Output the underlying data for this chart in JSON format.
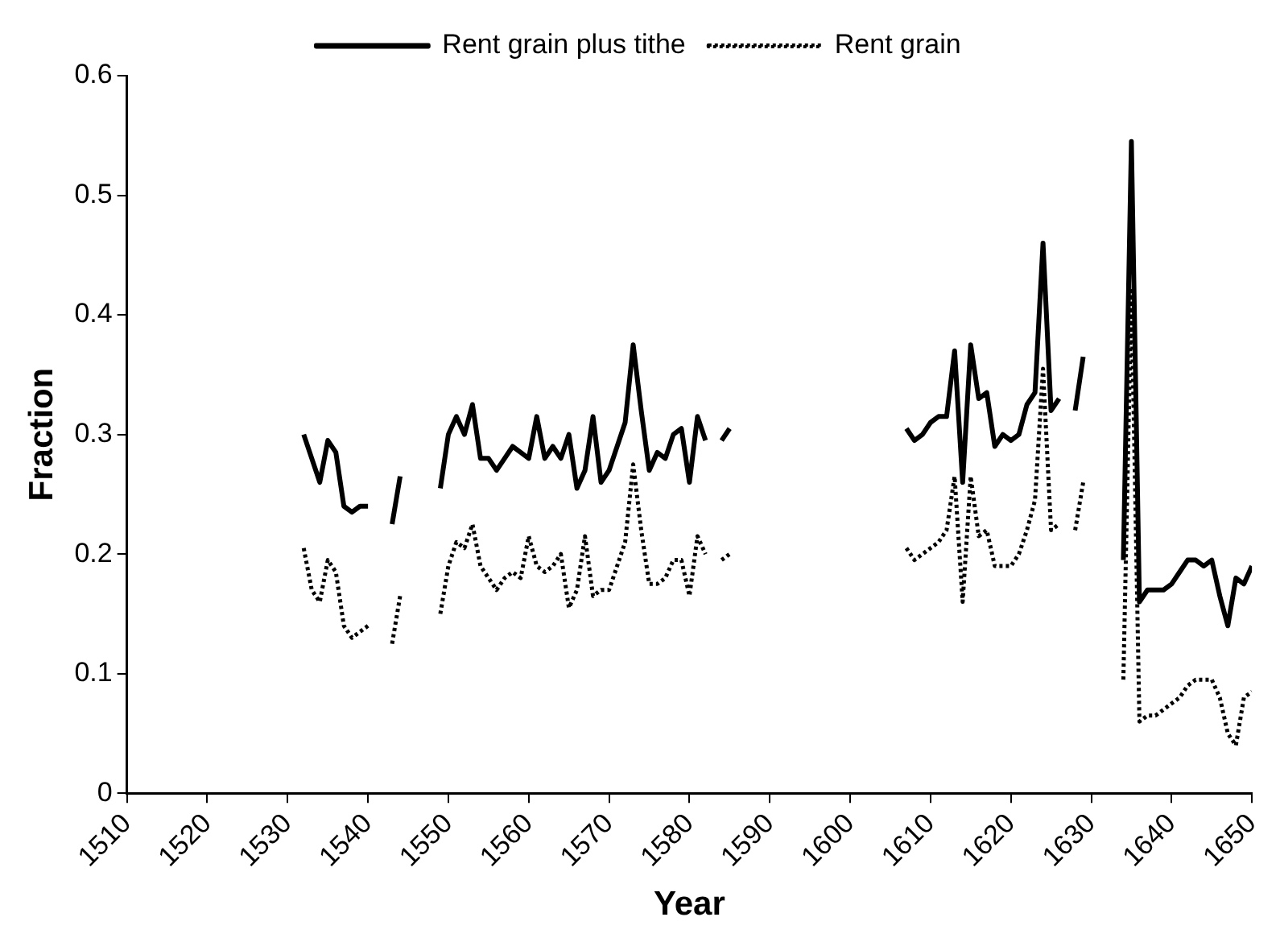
{
  "chart_data": {
    "type": "line",
    "xlabel": "Year",
    "ylabel": "Fraction",
    "x": [
      1532,
      1533,
      1534,
      1535,
      1536,
      1537,
      1538,
      1539,
      1540,
      1541,
      1542,
      1543,
      1544,
      1545,
      1546,
      1547,
      1548,
      1549,
      1550,
      1551,
      1552,
      1553,
      1554,
      1555,
      1556,
      1557,
      1558,
      1559,
      1560,
      1561,
      1562,
      1563,
      1564,
      1565,
      1566,
      1567,
      1568,
      1569,
      1570,
      1571,
      1572,
      1573,
      1574,
      1575,
      1576,
      1577,
      1578,
      1579,
      1580,
      1581,
      1582,
      1583,
      1584,
      1585,
      1586,
      1587,
      1588,
      1589,
      1590,
      1591,
      1592,
      1593,
      1594,
      1595,
      1596,
      1597,
      1598,
      1599,
      1600,
      1601,
      1602,
      1603,
      1604,
      1605,
      1606,
      1607,
      1608,
      1609,
      1610,
      1611,
      1612,
      1613,
      1614,
      1615,
      1616,
      1617,
      1618,
      1619,
      1620,
      1621,
      1622,
      1623,
      1624,
      1625,
      1626,
      1627,
      1628,
      1629,
      1630,
      1631,
      1632,
      1633,
      1634,
      1635,
      1636,
      1637,
      1638,
      1639,
      1640,
      1641,
      1642,
      1643,
      1644,
      1645,
      1646,
      1647,
      1648,
      1649,
      1650
    ],
    "series": [
      {
        "name": "Rent grain plus tithe",
        "color": "#000000",
        "line_style": "solid",
        "values": [
          0.3,
          0.28,
          0.26,
          0.295,
          0.285,
          0.24,
          0.235,
          0.24,
          0.24,
          null,
          null,
          0.225,
          0.265,
          null,
          null,
          null,
          null,
          0.255,
          0.3,
          0.315,
          0.3,
          0.325,
          0.28,
          0.28,
          0.27,
          0.28,
          0.29,
          0.285,
          0.28,
          0.315,
          0.28,
          0.29,
          0.28,
          0.3,
          0.255,
          0.27,
          0.315,
          0.26,
          0.27,
          0.29,
          0.31,
          0.375,
          0.32,
          0.27,
          0.285,
          0.28,
          0.3,
          0.305,
          0.26,
          0.315,
          0.295,
          null,
          0.295,
          0.305,
          null,
          null,
          null,
          null,
          null,
          null,
          null,
          null,
          null,
          null,
          null,
          null,
          null,
          null,
          null,
          null,
          null,
          null,
          null,
          null,
          null,
          0.305,
          0.295,
          0.3,
          0.31,
          0.315,
          0.315,
          0.37,
          0.26,
          0.375,
          0.33,
          0.335,
          0.29,
          0.3,
          0.295,
          0.3,
          0.325,
          0.335,
          0.46,
          0.32,
          0.33,
          null,
          0.32,
          0.365,
          null,
          null,
          null,
          null,
          0.195,
          0.545,
          0.16,
          0.17,
          0.17,
          0.17,
          0.175,
          0.185,
          0.195,
          0.195,
          0.19,
          0.195,
          0.165,
          0.14,
          0.18,
          0.175,
          0.19
        ]
      },
      {
        "name": "Rent grain",
        "color": "#000000",
        "line_style": "dotted",
        "values": [
          0.205,
          0.17,
          0.16,
          0.195,
          0.185,
          0.14,
          0.13,
          0.135,
          0.14,
          null,
          null,
          0.125,
          0.165,
          null,
          null,
          null,
          null,
          0.15,
          0.19,
          0.21,
          0.205,
          0.225,
          0.19,
          0.18,
          0.17,
          0.18,
          0.185,
          0.18,
          0.215,
          0.19,
          0.185,
          0.19,
          0.2,
          0.155,
          0.17,
          0.215,
          0.165,
          0.17,
          0.17,
          0.19,
          0.21,
          0.275,
          0.22,
          0.175,
          0.175,
          0.18,
          0.195,
          0.195,
          0.165,
          0.215,
          0.2,
          null,
          0.195,
          0.2,
          null,
          null,
          null,
          null,
          null,
          null,
          null,
          null,
          null,
          null,
          null,
          null,
          null,
          null,
          null,
          null,
          null,
          null,
          null,
          null,
          null,
          0.205,
          0.195,
          0.2,
          0.205,
          0.21,
          0.22,
          0.265,
          0.16,
          0.265,
          0.215,
          0.22,
          0.19,
          0.19,
          0.19,
          0.2,
          0.22,
          0.245,
          0.355,
          0.22,
          0.225,
          null,
          0.22,
          0.26,
          null,
          null,
          null,
          null,
          0.095,
          0.42,
          0.06,
          0.065,
          0.065,
          0.07,
          0.075,
          0.08,
          0.09,
          0.095,
          0.095,
          0.095,
          0.08,
          0.05,
          0.04,
          0.08,
          0.085
        ]
      }
    ],
    "xlim": [
      1510,
      1650
    ],
    "xticks": [
      1510,
      1520,
      1530,
      1540,
      1550,
      1560,
      1570,
      1580,
      1590,
      1600,
      1610,
      1620,
      1630,
      1640,
      1650
    ],
    "ylim": [
      0,
      0.6
    ],
    "yticks": [
      0,
      0.1,
      0.2,
      0.3,
      0.4,
      0.5,
      0.6
    ],
    "grid": false,
    "legend": "top",
    "marker": "none"
  }
}
